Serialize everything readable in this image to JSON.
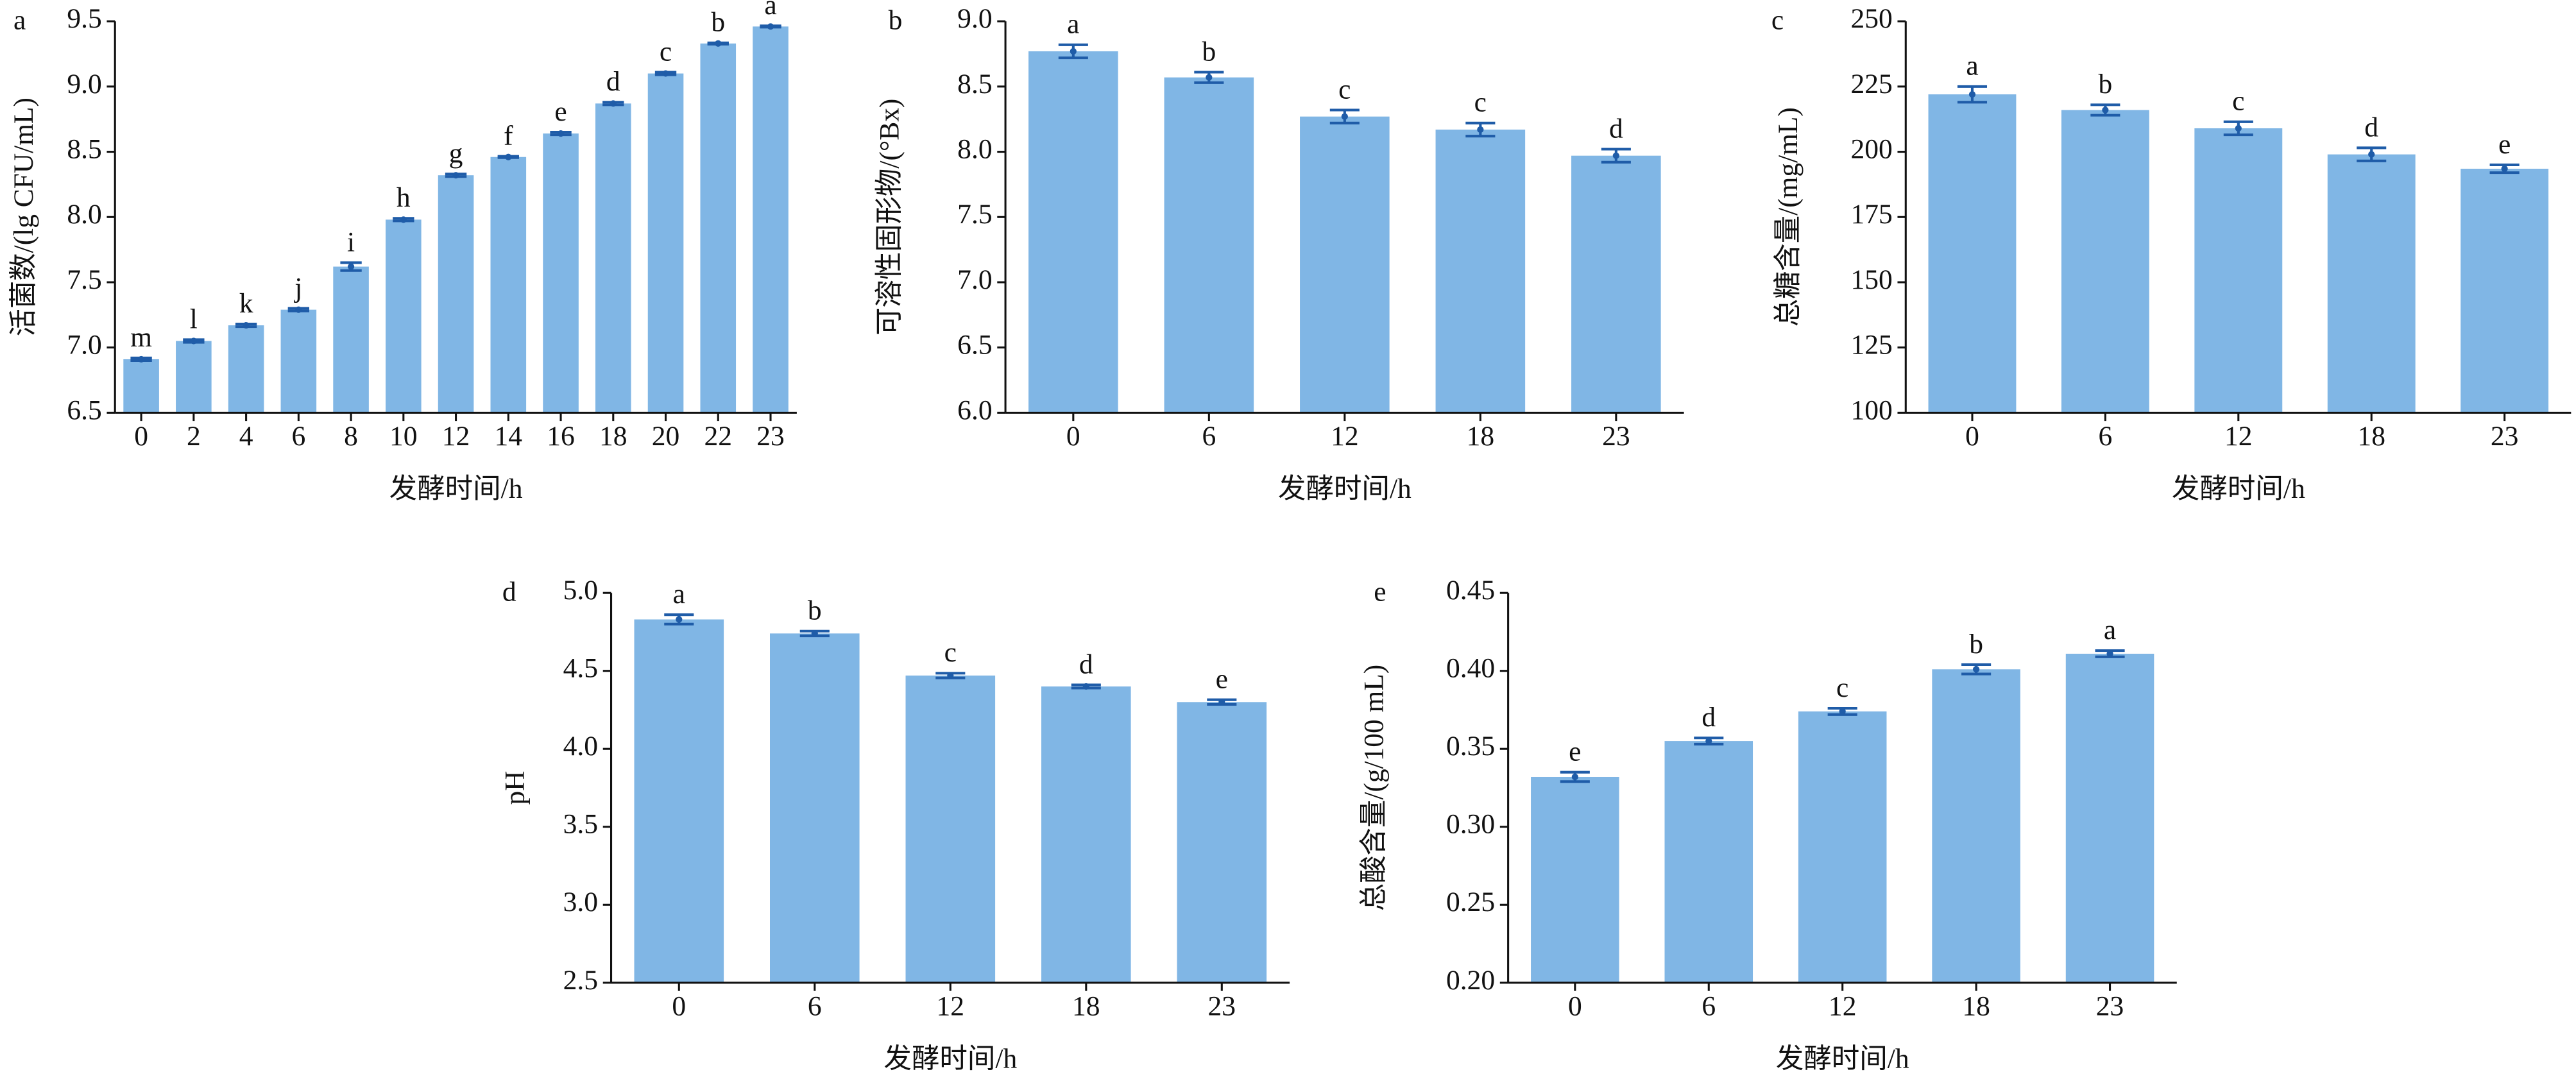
{
  "chart_data": [
    {
      "type": "bar",
      "panel": "a",
      "y_label": "活菌数/(lg CFU/mL)",
      "x_label": "发酵时间/h",
      "categories": [
        "0",
        "2",
        "4",
        "6",
        "8",
        "10",
        "12",
        "14",
        "16",
        "18",
        "20",
        "22",
        "23"
      ],
      "values": [
        6.91,
        7.05,
        7.17,
        7.29,
        7.62,
        7.98,
        8.32,
        8.46,
        8.64,
        8.87,
        9.1,
        9.33,
        9.46
      ],
      "errors": [
        0.01,
        0.01,
        0.01,
        0.01,
        0.03,
        0.01,
        0.01,
        0.005,
        0.01,
        0.01,
        0.01,
        0.005,
        0.005
      ],
      "annotations": [
        "m",
        "l",
        "k",
        "j",
        "i",
        "h",
        "g",
        "f",
        "e",
        "d",
        "c",
        "b",
        "a"
      ],
      "ylim": [
        6.5,
        9.5
      ],
      "yticks": [
        6.5,
        {
          "value": 7,
          "label": "7.0"
        },
        7.5,
        {
          "value": 8,
          "label": "8.0"
        },
        8.5,
        {
          "value": 9,
          "label": "9.0"
        },
        9.5
      ],
      "color": "#80b6e5",
      "error_color": "#1f5ca8"
    },
    {
      "type": "bar",
      "panel": "b",
      "y_label": "可溶性固形物/(°Bx)",
      "x_label": "发酵时间/h",
      "categories": [
        "0",
        "6",
        "12",
        "18",
        "23"
      ],
      "values": [
        8.77,
        8.57,
        8.27,
        8.17,
        7.97
      ],
      "errors": [
        0.05,
        0.04,
        0.05,
        0.05,
        0.05
      ],
      "annotations": [
        "a",
        "b",
        "c",
        "c",
        "d"
      ],
      "ylim": [
        6,
        9
      ],
      "yticks": [
        {
          "value": 6,
          "label": "6.0"
        },
        6.5,
        {
          "value": 7,
          "label": "7.0"
        },
        7.5,
        {
          "value": 8,
          "label": "8.0"
        },
        8.5,
        {
          "value": 9,
          "label": "9.0"
        }
      ],
      "color": "#80b6e5",
      "error_color": "#1f5ca8"
    },
    {
      "type": "bar",
      "panel": "c",
      "y_label": "总糖含量/(mg/mL)",
      "x_label": "发酵时间/h",
      "categories": [
        "0",
        "6",
        "12",
        "18",
        "23"
      ],
      "values": [
        222,
        216,
        209,
        199,
        193.5
      ],
      "errors": [
        3,
        2,
        2.5,
        2.5,
        1.5
      ],
      "annotations": [
        "a",
        "b",
        "c",
        "d",
        "e"
      ],
      "ylim": [
        100,
        250
      ],
      "yticks": [
        100,
        125,
        150,
        175,
        200,
        225,
        250
      ],
      "color": "#80b6e5",
      "error_color": "#1f5ca8"
    },
    {
      "type": "bar",
      "panel": "d",
      "y_label": "pH",
      "x_label": "发酵时间/h",
      "categories": [
        "0",
        "6",
        "12",
        "18",
        "23"
      ],
      "values": [
        4.83,
        4.74,
        4.47,
        4.4,
        4.3
      ],
      "errors": [
        0.03,
        0.015,
        0.015,
        0.01,
        0.015
      ],
      "annotations": [
        "a",
        "b",
        "c",
        "d",
        "e"
      ],
      "ylim": [
        2.5,
        5
      ],
      "yticks": [
        2.5,
        {
          "value": 3,
          "label": "3.0"
        },
        3.5,
        {
          "value": 4,
          "label": "4.0"
        },
        4.5,
        {
          "value": 5,
          "label": "5.0"
        }
      ],
      "color": "#80b6e5",
      "error_color": "#1f5ca8"
    },
    {
      "type": "bar",
      "panel": "e",
      "y_label": "总酸含量/(g/100 mL)",
      "x_label": "发酵时间/h",
      "categories": [
        "0",
        "6",
        "12",
        "18",
        "23"
      ],
      "values": [
        0.332,
        0.355,
        0.374,
        0.401,
        0.411
      ],
      "errors": [
        0.003,
        0.002,
        0.002,
        0.003,
        0.002
      ],
      "annotations": [
        "e",
        "d",
        "c",
        "b",
        "a"
      ],
      "ylim": [
        0.2,
        0.45
      ],
      "yticks": [
        {
          "value": 0.2,
          "label": "0.20"
        },
        0.25,
        {
          "value": 0.3,
          "label": "0.30"
        },
        0.35,
        {
          "value": 0.4,
          "label": "0.40"
        },
        0.45
      ],
      "color": "#80b6e5",
      "error_color": "#1f5ca8"
    }
  ]
}
